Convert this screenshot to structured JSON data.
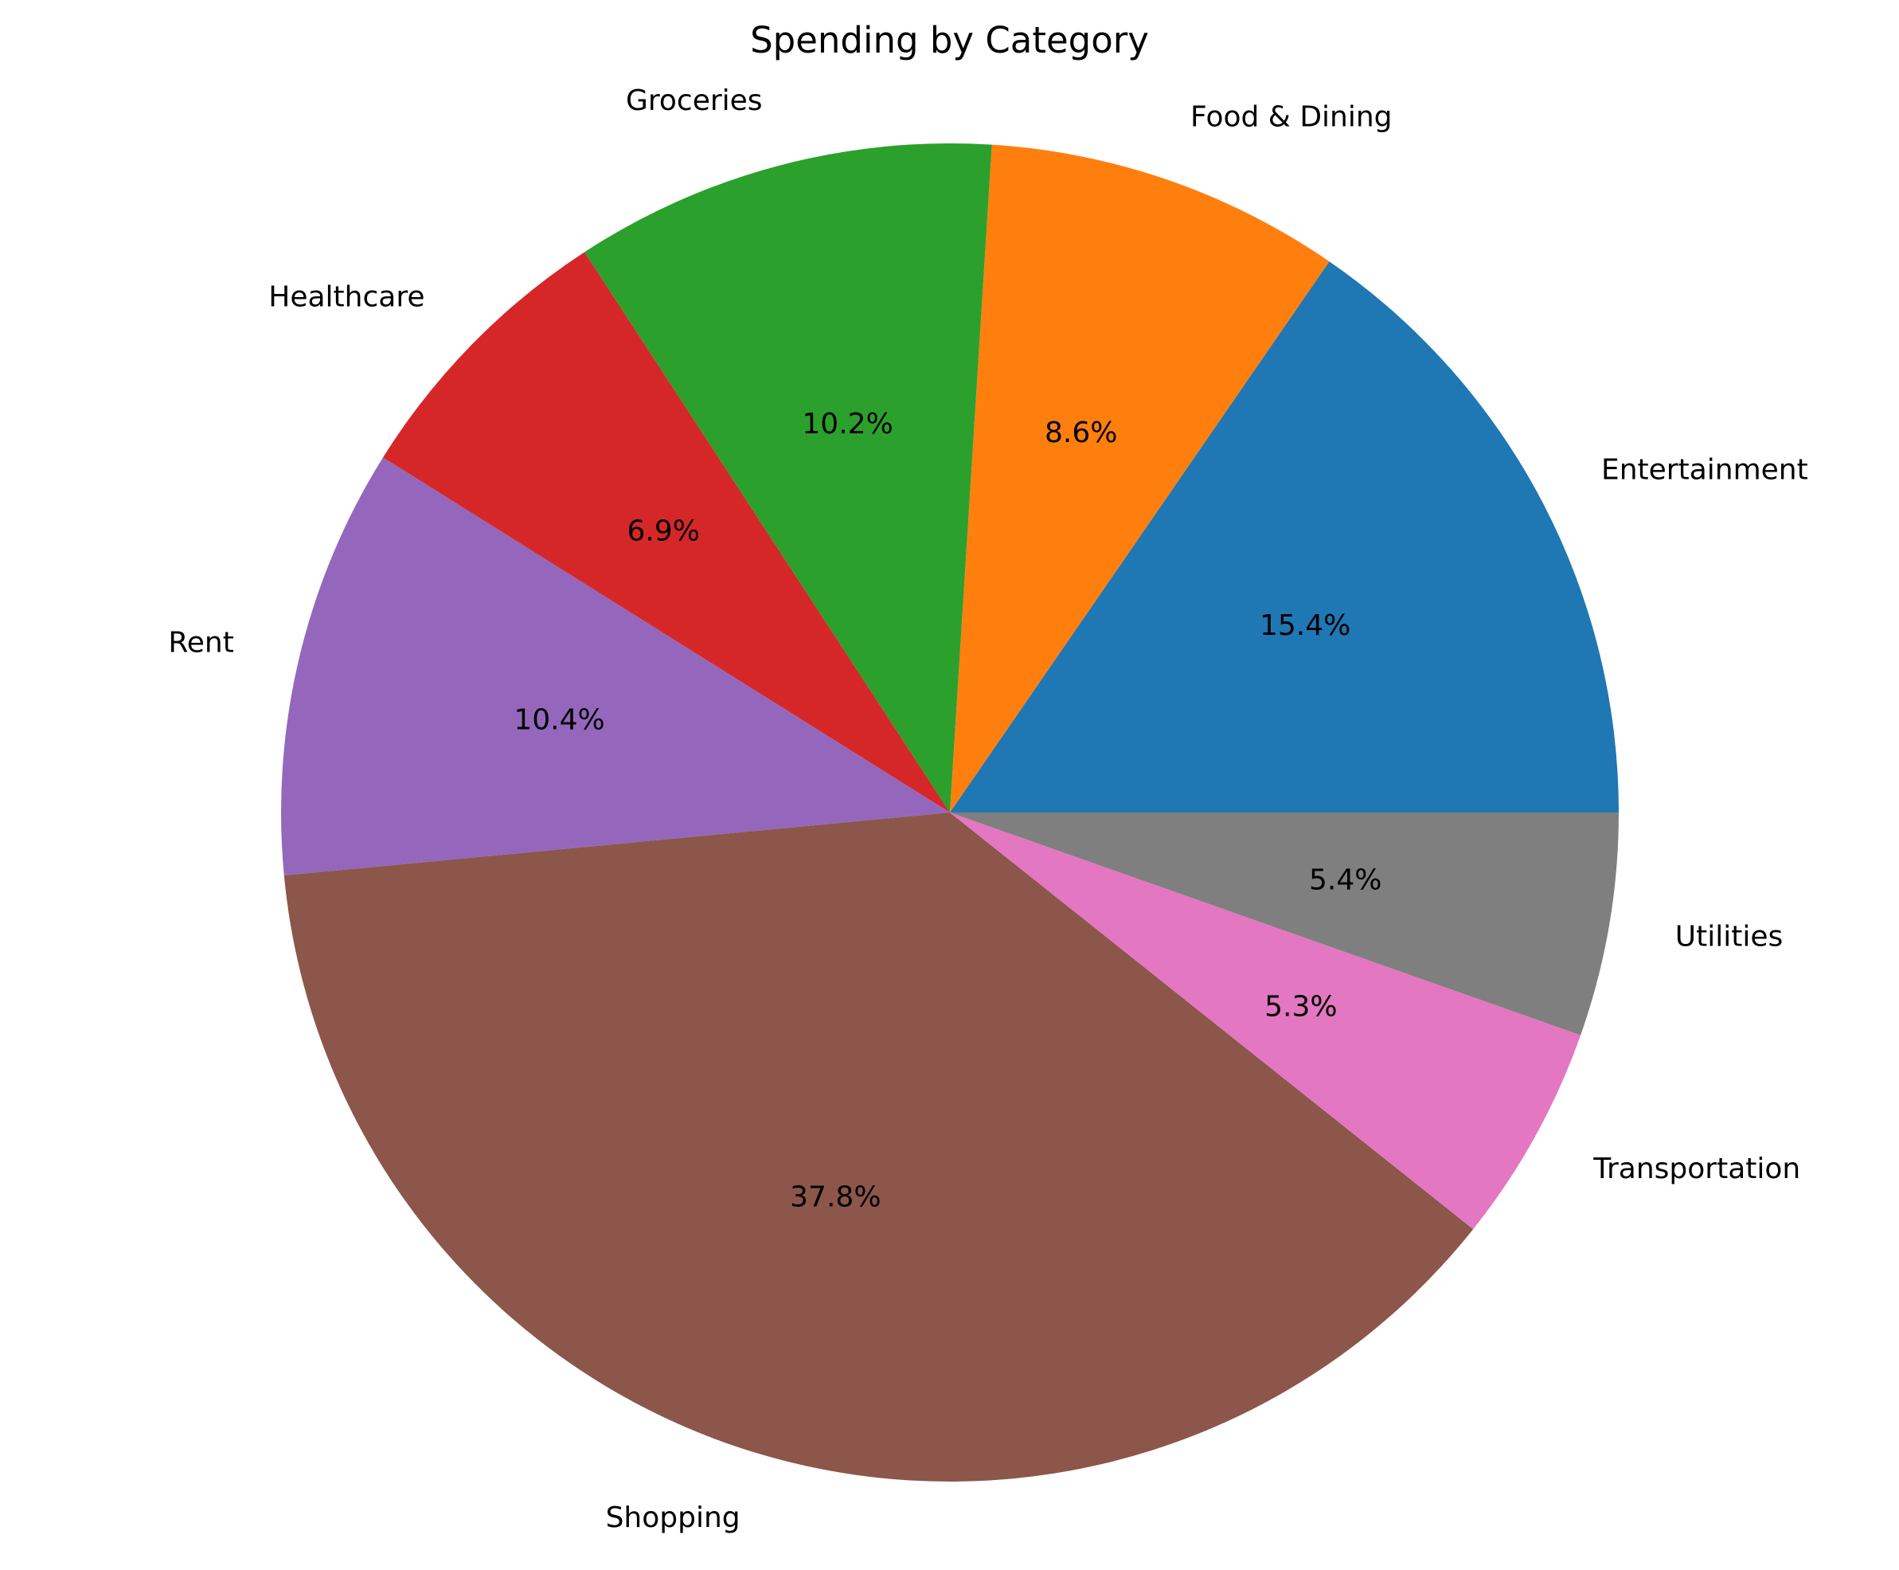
{
  "chart_data": {
    "type": "pie",
    "title": "Spending by Category",
    "start_angle_deg": 0,
    "direction": "counterclockwise",
    "slices": [
      {
        "label": "Entertainment",
        "value": 15.4,
        "pct_label": "15.4%",
        "color": "#1f77b4"
      },
      {
        "label": "Food & Dining",
        "value": 8.6,
        "pct_label": "8.6%",
        "color": "#ff7f0e"
      },
      {
        "label": "Groceries",
        "value": 10.2,
        "pct_label": "10.2%",
        "color": "#2ca02c"
      },
      {
        "label": "Healthcare",
        "value": 6.9,
        "pct_label": "6.9%",
        "color": "#d62728"
      },
      {
        "label": "Rent",
        "value": 10.4,
        "pct_label": "10.4%",
        "color": "#9467bd"
      },
      {
        "label": "Shopping",
        "value": 37.8,
        "pct_label": "37.8%",
        "color": "#8c564b"
      },
      {
        "label": "Transportation",
        "value": 5.3,
        "pct_label": "5.3%",
        "color": "#e377c2"
      },
      {
        "label": "Utilities",
        "value": 5.4,
        "pct_label": "5.4%",
        "color": "#7f7f7f"
      }
    ]
  }
}
